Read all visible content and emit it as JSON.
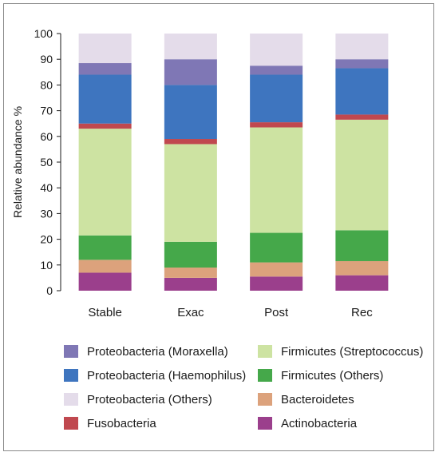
{
  "chart_data": {
    "type": "bar",
    "stacked": true,
    "categories": [
      "Stable",
      "Exac",
      "Post",
      "Rec"
    ],
    "ylabel": "Relative abundance %",
    "xlabel": "",
    "ylim": [
      0,
      100
    ],
    "yticks": [
      "0",
      "10",
      "20",
      "30",
      "40",
      "50",
      "60",
      "70",
      "80",
      "90",
      "100"
    ],
    "legend_position": "bottom",
    "series": [
      {
        "name": "Actinobacteria",
        "color": "#9b3f8c",
        "values": [
          7,
          5,
          5.5,
          6
        ]
      },
      {
        "name": "Bacteroidetes",
        "color": "#dca27c",
        "values": [
          5,
          4,
          5.5,
          5.5
        ]
      },
      {
        "name": "Firmicutes (Others)",
        "color": "#45a84a",
        "values": [
          9.5,
          10,
          11.5,
          12
        ]
      },
      {
        "name": "Firmicutes (Streptococcus)",
        "color": "#cde3a2",
        "values": [
          41.5,
          38,
          41,
          43
        ]
      },
      {
        "name": "Fusobacteria",
        "color": "#c0484f",
        "values": [
          2,
          2,
          2,
          2
        ]
      },
      {
        "name": "Proteobacteria (Haemophilus)",
        "color": "#3e75bf",
        "values": [
          19,
          21,
          18.5,
          18
        ]
      },
      {
        "name": "Proteobacteria (Moraxella)",
        "color": "#7f77b5",
        "values": [
          4.5,
          10,
          3.5,
          3.5
        ]
      },
      {
        "name": "Proteobacteria (Others)",
        "color": "#e4dcea",
        "values": [
          11.5,
          10,
          12.5,
          10
        ]
      }
    ]
  },
  "legend": {
    "items": [
      {
        "label": "Proteobacteria (Moraxella)",
        "color": "#7f77b5"
      },
      {
        "label": "Firmicutes (Streptococcus)",
        "color": "#cde3a2"
      },
      {
        "label": "Proteobacteria (Haemophilus)",
        "color": "#3e75bf"
      },
      {
        "label": "Firmicutes (Others)",
        "color": "#45a84a"
      },
      {
        "label": "Proteobacteria (Others)",
        "color": "#e4dcea"
      },
      {
        "label": "Bacteroidetes",
        "color": "#dca27c"
      },
      {
        "label": "Fusobacteria",
        "color": "#c0484f"
      },
      {
        "label": "Actinobacteria",
        "color": "#9b3f8c"
      }
    ]
  }
}
